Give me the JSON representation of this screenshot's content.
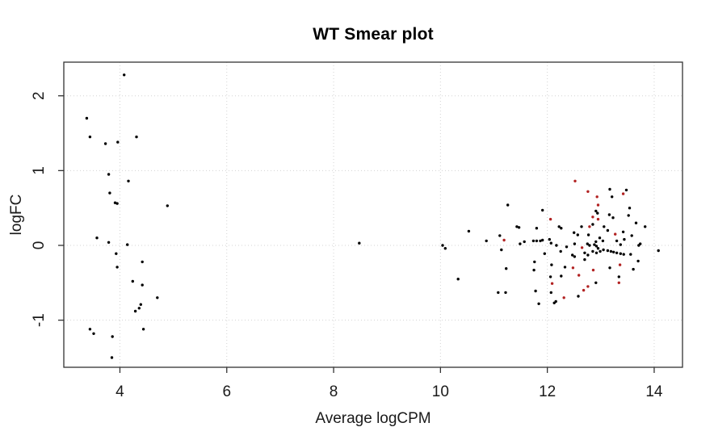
{
  "figure": {
    "title": "WT Smear plot",
    "xlabel": "Average logCPM",
    "ylabel": "logFC"
  },
  "chart_data": {
    "type": "scatter",
    "title": "WT Smear plot",
    "xlabel": "Average logCPM",
    "ylabel": "logFC",
    "xlim": [
      2.95,
      14.53
    ],
    "ylim": [
      -1.63,
      2.45
    ],
    "x_ticks": [
      4,
      6,
      8,
      10,
      12,
      14
    ],
    "y_ticks": [
      -1,
      0,
      1,
      2
    ],
    "grid": true,
    "grid_style": "dotted",
    "legend": "none",
    "colors": {
      "background": "#ffffff",
      "points": "#000000",
      "highlight": "#b22222",
      "grid": "#d3d3d3",
      "axis": "#333333",
      "text": "#1a1a1a"
    },
    "series": [
      {
        "name": "genes",
        "color": "#000000",
        "points": [
          [
            4.08,
            2.28
          ],
          [
            3.38,
            1.7
          ],
          [
            3.44,
            1.45
          ],
          [
            3.73,
            1.36
          ],
          [
            3.96,
            1.38
          ],
          [
            4.31,
            1.45
          ],
          [
            3.79,
            0.95
          ],
          [
            4.16,
            0.86
          ],
          [
            3.81,
            0.7
          ],
          [
            3.91,
            0.57
          ],
          [
            3.95,
            0.56
          ],
          [
            4.89,
            0.53
          ],
          [
            3.57,
            0.1
          ],
          [
            3.79,
            0.04
          ],
          [
            4.14,
            0.01
          ],
          [
            3.93,
            -0.11
          ],
          [
            4.42,
            -0.22
          ],
          [
            3.95,
            -0.29
          ],
          [
            4.24,
            -0.48
          ],
          [
            4.42,
            -0.53
          ],
          [
            4.7,
            -0.7
          ],
          [
            4.39,
            -0.79
          ],
          [
            4.36,
            -0.84
          ],
          [
            4.29,
            -0.88
          ],
          [
            3.44,
            -1.12
          ],
          [
            3.51,
            -1.18
          ],
          [
            3.86,
            -1.22
          ],
          [
            4.44,
            -1.12
          ],
          [
            3.85,
            -1.5
          ],
          [
            8.48,
            0.03
          ],
          [
            10.04,
            0.0
          ],
          [
            10.09,
            -0.04
          ],
          [
            10.53,
            0.19
          ],
          [
            10.86,
            0.06
          ],
          [
            11.11,
            0.13
          ],
          [
            11.26,
            0.54
          ],
          [
            11.14,
            -0.06
          ],
          [
            11.23,
            -0.31
          ],
          [
            10.33,
            -0.45
          ],
          [
            11.08,
            -0.63
          ],
          [
            11.22,
            -0.63
          ],
          [
            11.91,
            0.47
          ],
          [
            12.91,
            0.46
          ],
          [
            12.94,
            0.43
          ],
          [
            11.43,
            0.25
          ],
          [
            11.47,
            0.24
          ],
          [
            11.8,
            0.23
          ],
          [
            12.22,
            0.25
          ],
          [
            12.26,
            0.23
          ],
          [
            12.64,
            0.25
          ],
          [
            12.85,
            0.28
          ],
          [
            12.5,
            0.17
          ],
          [
            12.57,
            0.14
          ],
          [
            12.77,
            0.14
          ],
          [
            11.57,
            0.05
          ],
          [
            11.74,
            0.06
          ],
          [
            11.8,
            0.06
          ],
          [
            11.87,
            0.06
          ],
          [
            11.91,
            0.07
          ],
          [
            12.04,
            0.08
          ],
          [
            12.17,
            0.0
          ],
          [
            12.36,
            -0.02
          ],
          [
            12.75,
            0.02
          ],
          [
            12.79,
            0.0
          ],
          [
            12.88,
            0.01
          ],
          [
            12.91,
            0.05
          ],
          [
            12.98,
            0.1
          ],
          [
            13.06,
            0.25
          ],
          [
            13.04,
            0.06
          ],
          [
            13.17,
            0.75
          ],
          [
            13.48,
            0.74
          ],
          [
            13.21,
            0.65
          ],
          [
            13.54,
            0.5
          ],
          [
            13.52,
            0.4
          ],
          [
            13.16,
            0.41
          ],
          [
            13.23,
            0.37
          ],
          [
            13.66,
            0.3
          ],
          [
            13.83,
            0.25
          ],
          [
            13.13,
            0.2
          ],
          [
            13.42,
            0.18
          ],
          [
            13.58,
            0.13
          ],
          [
            13.3,
            0.06
          ],
          [
            13.44,
            0.08
          ],
          [
            13.71,
            0.0
          ],
          [
            11.49,
            0.02
          ],
          [
            12.07,
            0.03
          ],
          [
            12.51,
            0.02
          ],
          [
            12.92,
            -0.01
          ],
          [
            12.95,
            -0.04
          ],
          [
            11.95,
            -0.11
          ],
          [
            12.25,
            -0.08
          ],
          [
            12.47,
            -0.13
          ],
          [
            12.51,
            -0.15
          ],
          [
            12.7,
            -0.1
          ],
          [
            12.76,
            -0.13
          ],
          [
            12.85,
            -0.08
          ],
          [
            12.92,
            -0.1
          ],
          [
            12.99,
            -0.08
          ],
          [
            13.05,
            -0.06
          ],
          [
            11.76,
            -0.22
          ],
          [
            11.75,
            -0.33
          ],
          [
            12.08,
            -0.26
          ],
          [
            12.06,
            -0.42
          ],
          [
            12.26,
            -0.41
          ],
          [
            12.33,
            -0.29
          ],
          [
            12.7,
            -0.19
          ],
          [
            12.91,
            -0.5
          ],
          [
            11.78,
            -0.61
          ],
          [
            12.07,
            -0.63
          ],
          [
            12.16,
            -0.75
          ],
          [
            12.58,
            -0.68
          ],
          [
            11.84,
            -0.78
          ],
          [
            12.13,
            -0.77
          ],
          [
            13.37,
            0.01
          ],
          [
            13.74,
            0.02
          ],
          [
            13.13,
            -0.07
          ],
          [
            13.19,
            -0.08
          ],
          [
            13.24,
            -0.09
          ],
          [
            13.3,
            -0.1
          ],
          [
            13.37,
            -0.11
          ],
          [
            13.43,
            -0.12
          ],
          [
            13.56,
            -0.12
          ],
          [
            14.08,
            -0.07
          ],
          [
            13.7,
            -0.21
          ],
          [
            13.17,
            -0.3
          ],
          [
            13.61,
            -0.32
          ],
          [
            13.34,
            -0.42
          ]
        ]
      },
      {
        "name": "highlighted-genes",
        "color": "#b22222",
        "points": [
          [
            11.19,
            0.07
          ],
          [
            12.52,
            0.86
          ],
          [
            12.76,
            0.72
          ],
          [
            12.93,
            0.65
          ],
          [
            12.95,
            0.54
          ],
          [
            12.06,
            0.35
          ],
          [
            12.85,
            0.38
          ],
          [
            12.95,
            0.35
          ],
          [
            12.79,
            0.25
          ],
          [
            12.65,
            -0.03
          ],
          [
            13.42,
            0.69
          ],
          [
            13.27,
            0.15
          ],
          [
            12.48,
            -0.3
          ],
          [
            12.59,
            -0.4
          ],
          [
            12.86,
            -0.33
          ],
          [
            12.09,
            -0.51
          ],
          [
            12.31,
            -0.7
          ],
          [
            12.68,
            -0.6
          ],
          [
            12.76,
            -0.55
          ],
          [
            13.36,
            -0.26
          ],
          [
            13.34,
            -0.5
          ]
        ]
      }
    ]
  }
}
